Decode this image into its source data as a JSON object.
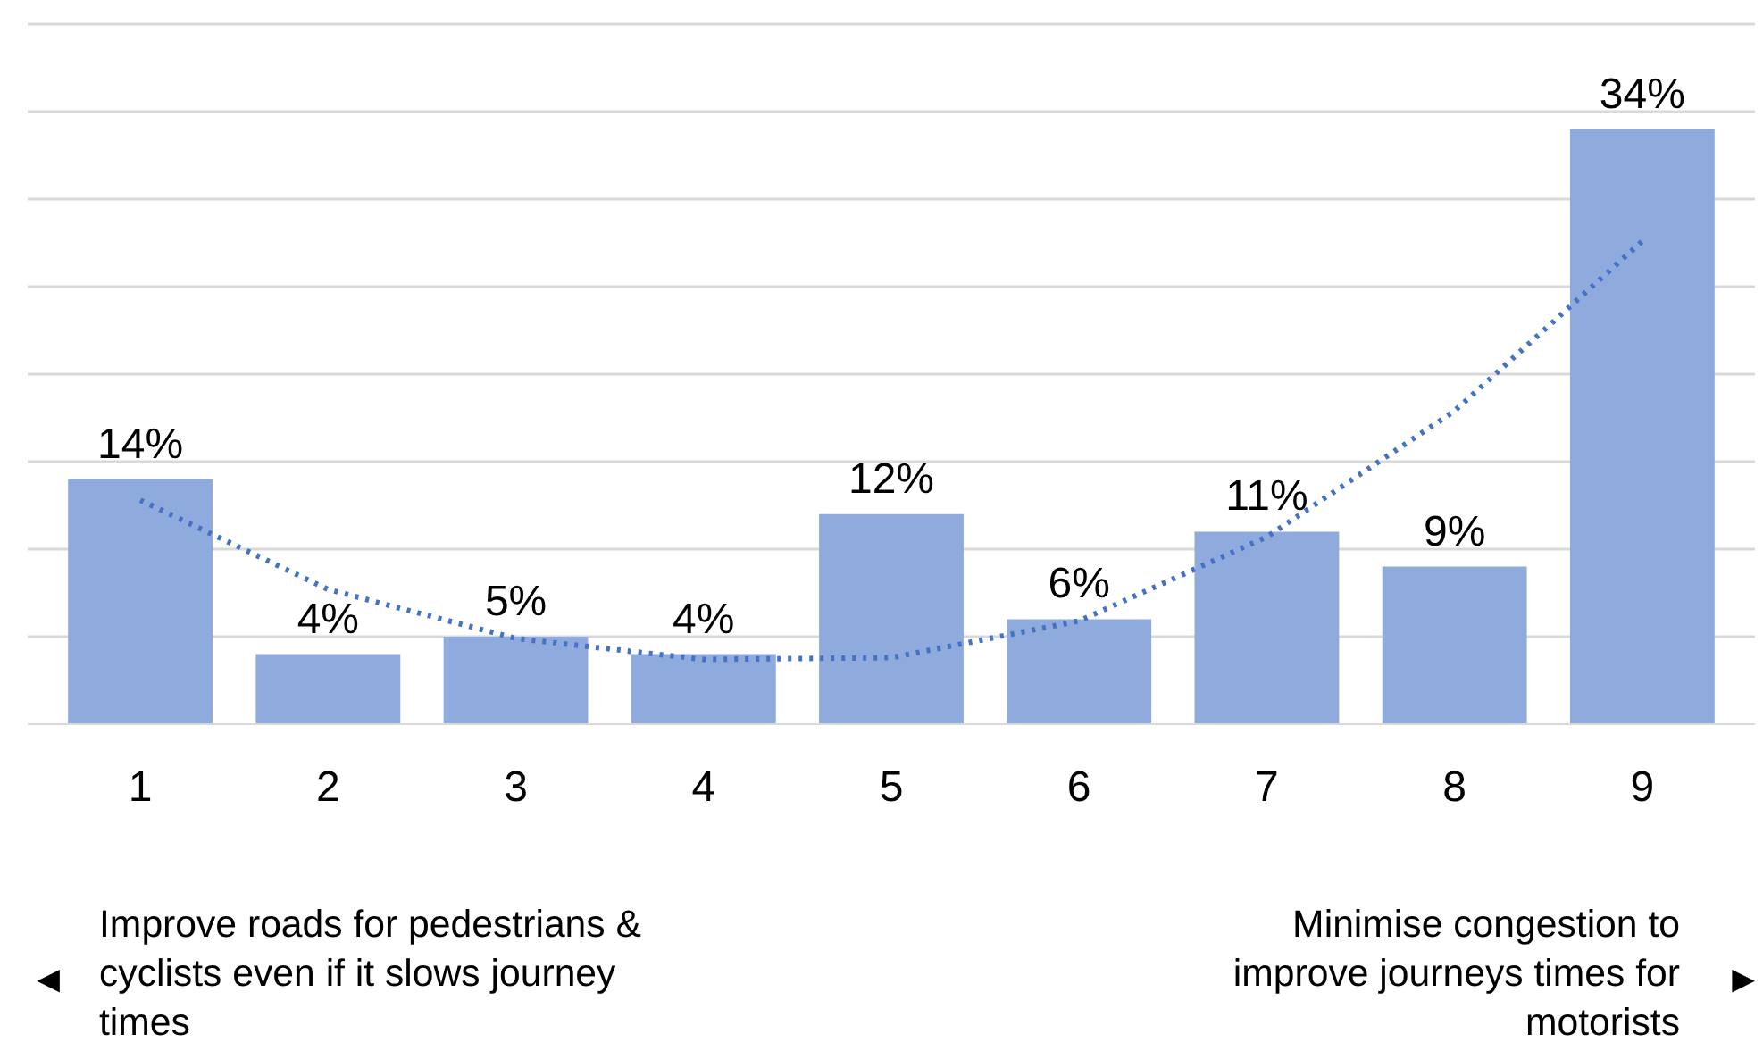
{
  "chart_data": {
    "type": "bar",
    "categories": [
      "1",
      "2",
      "3",
      "4",
      "5",
      "6",
      "7",
      "8",
      "9"
    ],
    "series": [
      {
        "color": "#8faadc",
        "values": [
          14,
          4,
          5,
          4,
          12,
          6,
          11,
          9,
          34
        ],
        "value_labels": [
          "14%",
          "4%",
          "5%",
          "4%",
          "12%",
          "6%",
          "11%",
          "9%",
          "34%"
        ]
      },
      {
        "type": "line",
        "color": "#4472c4",
        "line_style": "dotted",
        "x": [
          "1",
          "2",
          "3",
          "4",
          "5",
          "6",
          "7",
          "8",
          "9"
        ],
        "values": [
          12.8,
          7.7,
          4.9,
          3.7,
          3.8,
          5.9,
          10.7,
          17.9,
          27.6
        ]
      }
    ],
    "ylim": [
      0,
      40
    ],
    "yticks": [
      {
        "value": 0,
        "label": null
      },
      {
        "value": 5,
        "label": null
      },
      {
        "value": 10,
        "label": null
      },
      {
        "value": 15,
        "label": null
      },
      {
        "value": 20,
        "label": null
      },
      {
        "value": 25,
        "label": null
      },
      {
        "value": 30,
        "label": null
      },
      {
        "value": 35,
        "label": null
      },
      {
        "value": 40,
        "label": null
      }
    ],
    "grid": "y",
    "tick_labels": "x",
    "annotations": [
      "◄",
      "Improve roads for pedestrians &\ncyclists even if it slows journey\ntimes",
      "Minimise congestion to\nimprove journeys times for\nmotorists",
      "►"
    ]
  }
}
